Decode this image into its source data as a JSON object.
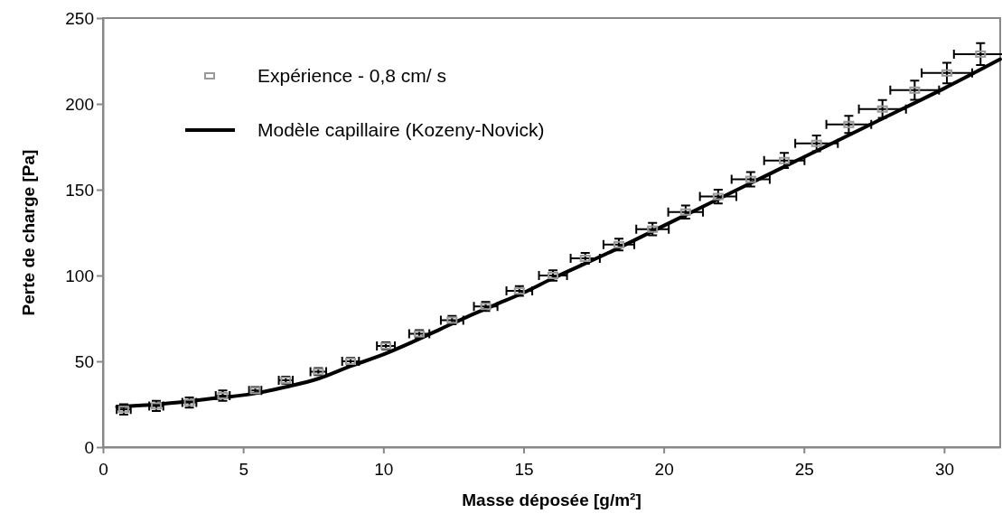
{
  "chart_data": {
    "type": "scatter",
    "xlabel": "Masse déposée [g/m²]",
    "ylabel": "Perte de charge [Pa]",
    "xlim": [
      0,
      32
    ],
    "ylim": [
      0,
      250
    ],
    "xticks": [
      0,
      5,
      10,
      15,
      20,
      25,
      30
    ],
    "yticks": [
      0,
      50,
      100,
      150,
      200,
      250
    ],
    "grid": false,
    "legend": "top left",
    "series": [
      {
        "name": "Expérience - 0,8 cm/ s",
        "color": "#999999",
        "marker": "square",
        "x": [
          0.74,
          1.9,
          3.08,
          4.27,
          5.43,
          6.52,
          7.68,
          8.83,
          10.09,
          11.28,
          12.45,
          13.65,
          14.85,
          16.05,
          17.2,
          18.4,
          19.6,
          20.78,
          21.94,
          23.1,
          24.3,
          25.45,
          26.6,
          27.8,
          28.95,
          30.1,
          31.3
        ],
        "values": [
          22,
          24,
          26,
          30,
          33,
          39,
          44,
          50,
          59,
          66,
          74,
          82,
          91,
          100,
          110,
          118,
          127,
          137,
          146,
          156,
          167,
          177,
          188,
          197,
          208,
          218,
          229
        ],
        "errors": [
          3,
          3,
          3,
          3,
          2,
          2,
          2,
          2,
          2,
          2.2,
          2.4,
          2.6,
          2.8,
          3,
          3.2,
          3.4,
          3.6,
          3.8,
          4,
          4.2,
          4.4,
          4.6,
          5,
          5.2,
          5.6,
          6,
          6.4
        ],
        "xerrors": [
          0.25,
          0.25,
          0.25,
          0.25,
          0.22,
          0.25,
          0.28,
          0.3,
          0.32,
          0.36,
          0.4,
          0.42,
          0.46,
          0.5,
          0.52,
          0.55,
          0.58,
          0.62,
          0.65,
          0.68,
          0.72,
          0.76,
          0.8,
          0.84,
          0.87,
          0.9,
          0.95
        ]
      },
      {
        "name": "Modèle capillaire (Kozeny-Novick)",
        "type": "line",
        "color": "#000000",
        "line_style": "solid",
        "marker": "none",
        "x": [
          0.5,
          2,
          4,
          5.5,
          6.5,
          7.7,
          8.8,
          10,
          11,
          12,
          13,
          14,
          15,
          16,
          18,
          20,
          22,
          24,
          26,
          28,
          30,
          32
        ],
        "values": [
          23.5,
          25,
          28.5,
          31.5,
          35,
          40,
          47,
          54,
          61,
          68.5,
          76,
          83,
          90,
          98,
          113,
          129,
          145,
          161,
          177,
          193,
          209,
          226
        ]
      }
    ]
  }
}
